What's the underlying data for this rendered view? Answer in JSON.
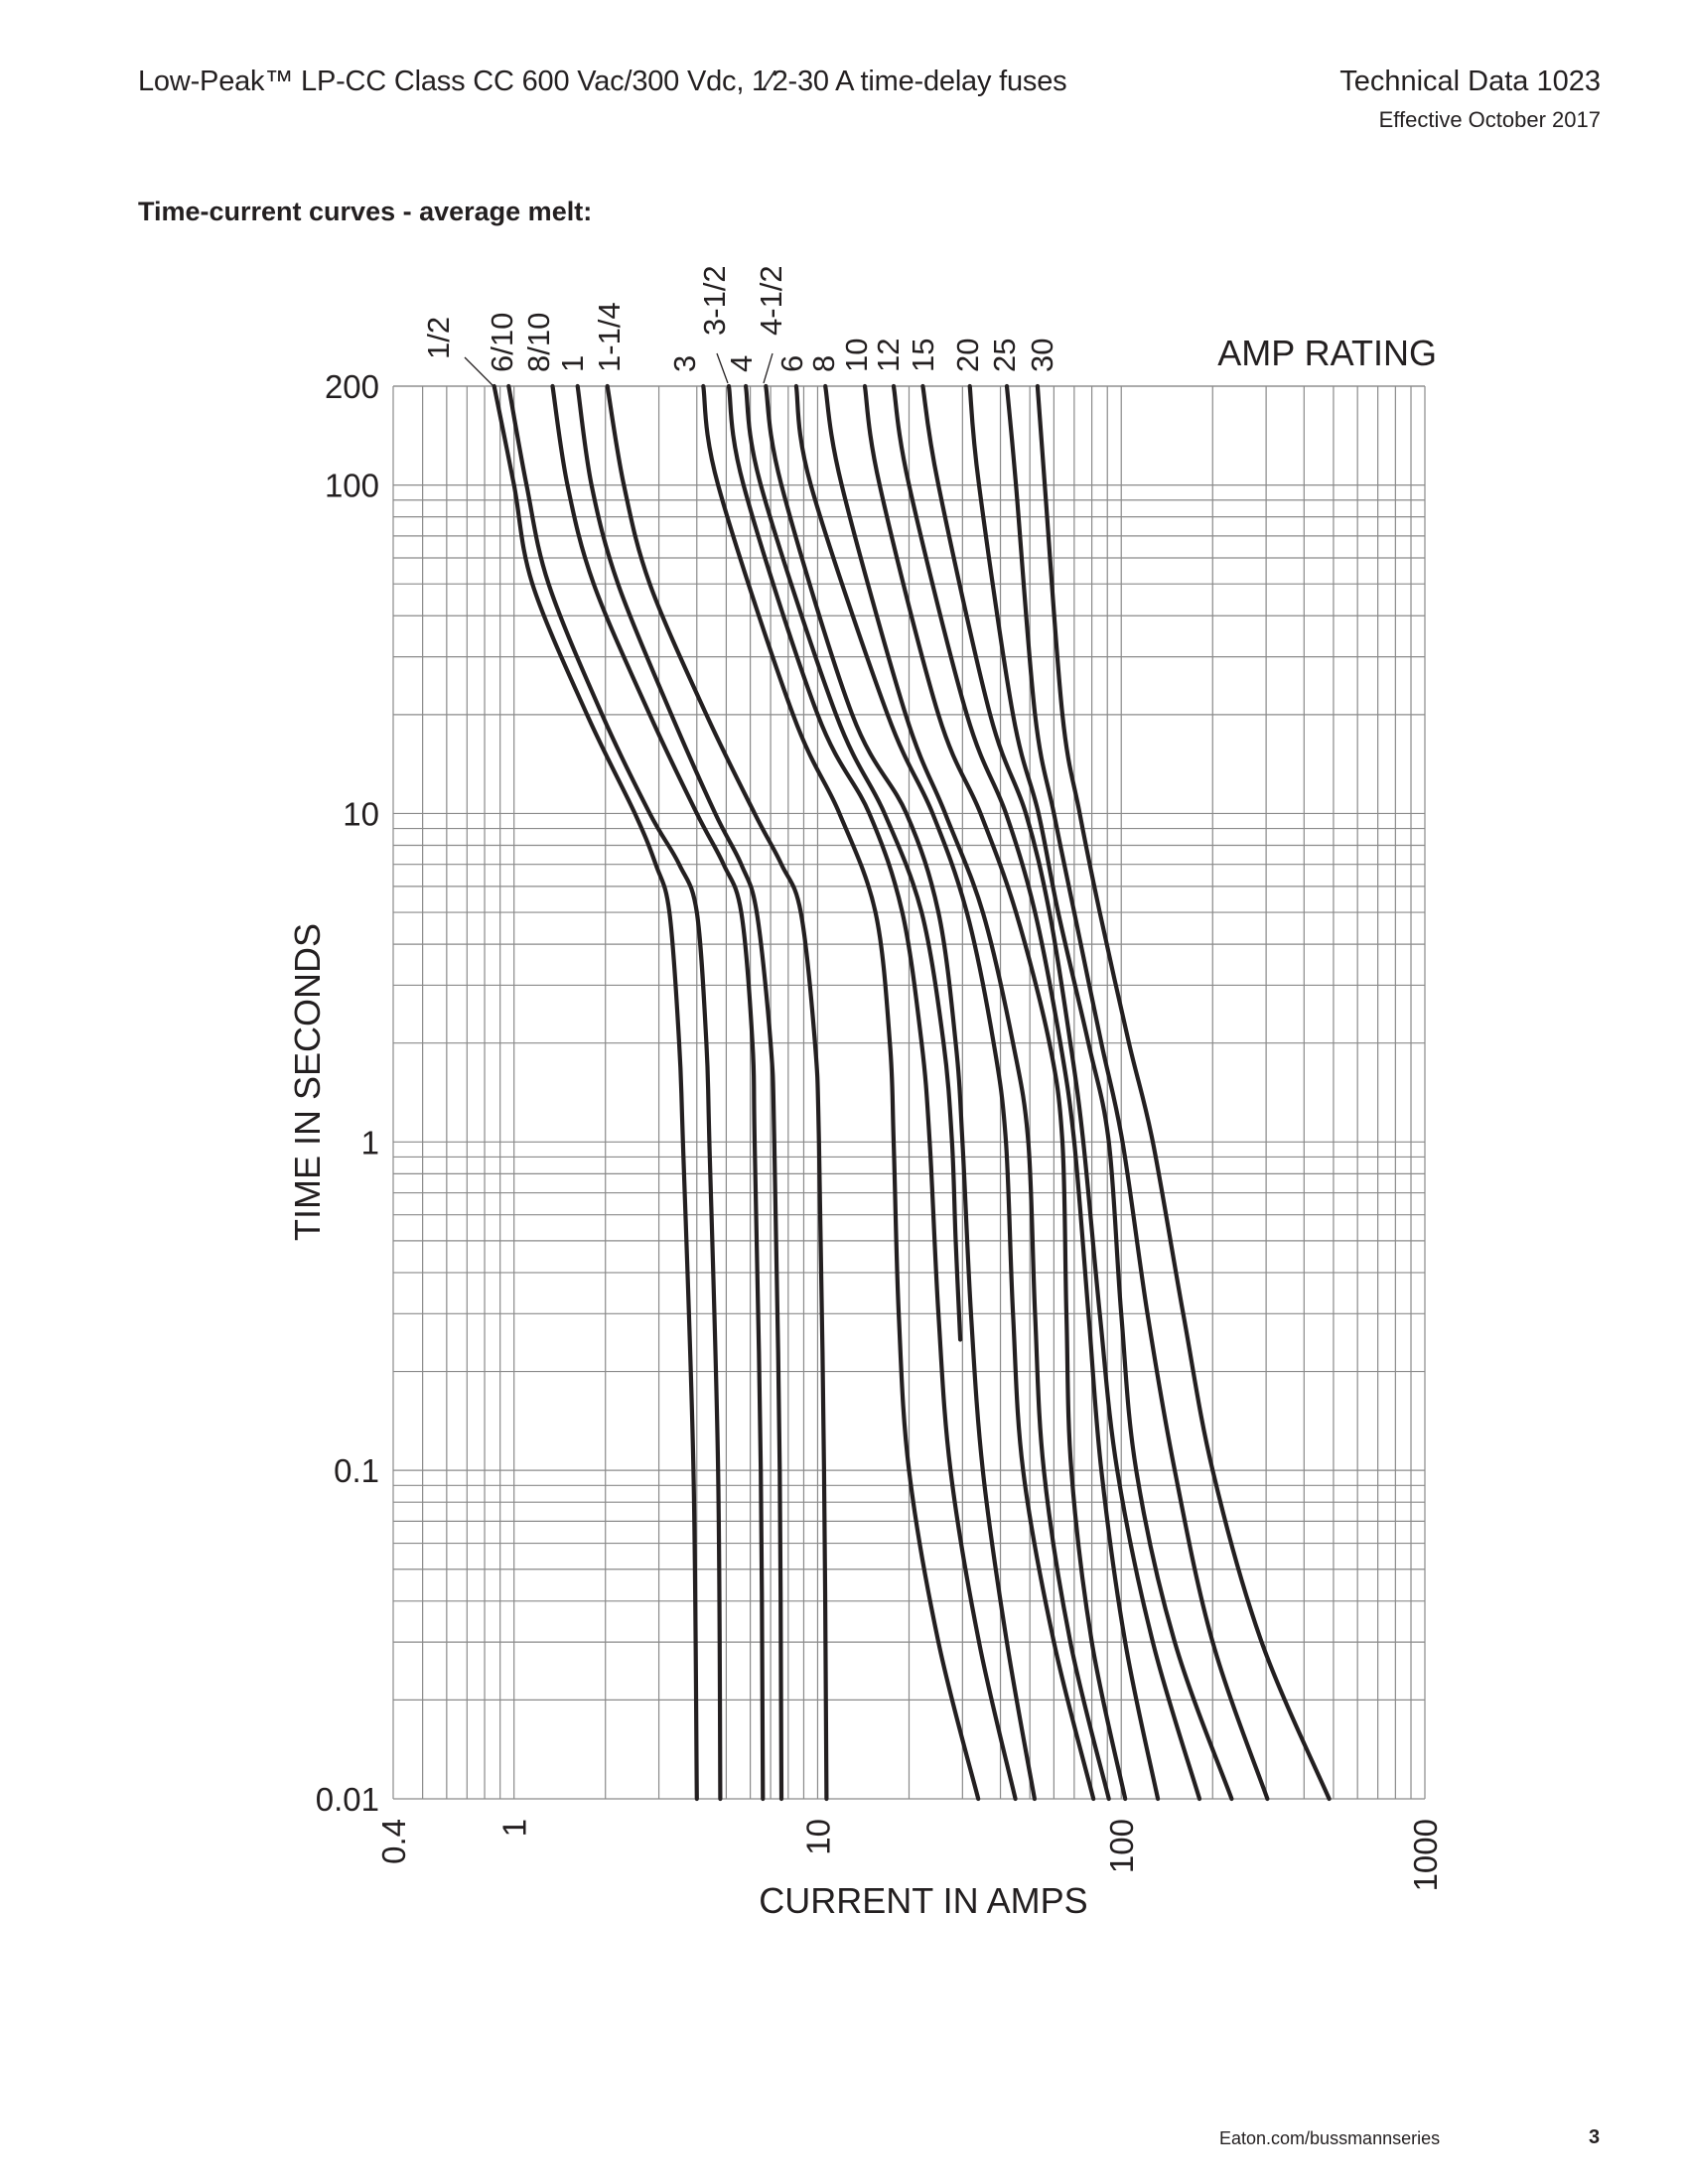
{
  "header": {
    "title": "Low-Peak™ LP-CC Class CC 600 Vac/300 Vdc, 1⁄2-30 A time-delay fuses",
    "doc": "Technical Data 1023",
    "date": "Effective October 2017"
  },
  "section_title": "Time-current curves - average melt:",
  "footer": {
    "url": "Eaton.com/bussmannseries",
    "page": "3"
  },
  "chart_data": {
    "type": "line",
    "title": "",
    "xlabel": "CURRENT IN AMPS",
    "ylabel": "TIME IN SECONDS",
    "legend_title": "AMP RATING",
    "xscale": "log",
    "yscale": "log",
    "xlim": [
      0.4,
      1000
    ],
    "ylim": [
      0.01,
      200
    ],
    "xticks": [
      "0.4",
      "1",
      "10",
      "100",
      "1000"
    ],
    "yticks": [
      "200",
      "100",
      "10",
      "1",
      "0.1",
      "0.01"
    ],
    "grid": true,
    "line_color": "#231f20",
    "series": [
      {
        "name": "1/2",
        "points": [
          [
            0.86,
            200
          ],
          [
            1.0,
            100
          ],
          [
            1.15,
            50
          ],
          [
            1.74,
            20
          ],
          [
            2.5,
            10
          ],
          [
            2.93,
            7
          ],
          [
            3.25,
            5
          ],
          [
            3.5,
            2
          ],
          [
            3.6,
            1
          ],
          [
            3.9,
            0.1
          ],
          [
            4.0,
            0.01
          ]
        ]
      },
      {
        "name": "6/10",
        "points": [
          [
            0.96,
            200
          ],
          [
            1.1,
            100
          ],
          [
            1.3,
            50
          ],
          [
            1.95,
            20
          ],
          [
            2.8,
            10
          ],
          [
            3.5,
            7
          ],
          [
            4.0,
            5
          ],
          [
            4.3,
            2
          ],
          [
            4.4,
            1
          ],
          [
            4.7,
            0.1
          ],
          [
            4.78,
            0.01
          ]
        ]
      },
      {
        "name": "8/10",
        "points": [
          [
            1.34,
            200
          ],
          [
            1.5,
            100
          ],
          [
            1.83,
            50
          ],
          [
            2.8,
            20
          ],
          [
            4.0,
            10
          ],
          [
            4.9,
            7
          ],
          [
            5.6,
            5
          ],
          [
            6.1,
            2
          ],
          [
            6.2,
            1
          ],
          [
            6.5,
            0.1
          ],
          [
            6.6,
            0.01
          ]
        ]
      },
      {
        "name": "1",
        "points": [
          [
            1.62,
            200
          ],
          [
            1.8,
            100
          ],
          [
            2.2,
            50
          ],
          [
            3.3,
            20
          ],
          [
            4.6,
            10
          ],
          [
            5.6,
            7
          ],
          [
            6.3,
            5
          ],
          [
            7.0,
            2
          ],
          [
            7.2,
            1
          ],
          [
            7.5,
            0.1
          ],
          [
            7.6,
            0.01
          ]
        ]
      },
      {
        "name": "1-1/4",
        "points": [
          [
            2.03,
            200
          ],
          [
            2.3,
            100
          ],
          [
            2.8,
            50
          ],
          [
            4.3,
            20
          ],
          [
            6.2,
            10
          ],
          [
            7.6,
            7
          ],
          [
            8.8,
            5
          ],
          [
            9.8,
            2
          ],
          [
            10.1,
            1
          ],
          [
            10.5,
            0.1
          ],
          [
            10.7,
            0.01
          ]
        ]
      },
      {
        "name": "3",
        "points": [
          [
            4.2,
            200
          ],
          [
            4.7,
            100
          ],
          [
            8.3,
            20
          ],
          [
            11.8,
            10
          ],
          [
            15.5,
            5
          ],
          [
            17.3,
            2
          ],
          [
            17.8,
            1
          ],
          [
            18.5,
            0.3
          ],
          [
            20,
            0.1
          ],
          [
            25,
            0.03
          ],
          [
            33.8,
            0.01
          ]
        ]
      },
      {
        "name": "3-1/2",
        "points": [
          [
            5.1,
            200
          ],
          [
            5.7,
            100
          ],
          [
            10,
            20
          ],
          [
            14.8,
            10
          ],
          [
            19,
            5
          ],
          [
            22,
            2
          ],
          [
            23.4,
            1
          ],
          [
            25,
            0.3
          ],
          [
            27.4,
            0.1
          ],
          [
            34,
            0.03
          ],
          [
            44.8,
            0.01
          ]
        ]
      },
      {
        "name": "4",
        "points": [
          [
            5.8,
            200
          ],
          [
            6.5,
            100
          ],
          [
            11.5,
            20
          ],
          [
            16.6,
            10
          ],
          [
            22,
            5
          ],
          [
            26,
            2
          ],
          [
            27.7,
            1
          ],
          [
            28.5,
            0.5
          ],
          [
            29.5,
            0.25
          ]
        ]
      },
      {
        "name": "4-1/2",
        "points": [
          [
            6.75,
            200
          ],
          [
            7.6,
            100
          ],
          [
            13,
            20
          ],
          [
            19.6,
            10
          ],
          [
            25,
            5
          ],
          [
            28.5,
            2
          ],
          [
            30,
            1
          ],
          [
            32,
            0.3
          ],
          [
            35,
            0.1
          ],
          [
            42,
            0.03
          ],
          [
            51.8,
            0.01
          ]
        ]
      },
      {
        "name": "6",
        "points": [
          [
            8.5,
            200
          ],
          [
            9.5,
            100
          ],
          [
            17,
            20
          ],
          [
            23.9,
            10
          ],
          [
            31,
            5
          ],
          [
            38,
            2
          ],
          [
            41.7,
            1
          ],
          [
            44,
            0.3
          ],
          [
            47.5,
            0.1
          ],
          [
            60,
            0.03
          ],
          [
            81,
            0.01
          ]
        ]
      },
      {
        "name": "8",
        "points": [
          [
            10.6,
            200
          ],
          [
            12,
            100
          ],
          [
            19.5,
            20
          ],
          [
            26.3,
            10
          ],
          [
            35,
            5
          ],
          [
            44,
            2
          ],
          [
            49.4,
            1
          ],
          [
            52,
            0.3
          ],
          [
            55.6,
            0.1
          ],
          [
            68,
            0.03
          ],
          [
            91,
            0.01
          ]
        ]
      },
      {
        "name": "10",
        "points": [
          [
            14.3,
            200
          ],
          [
            16,
            100
          ],
          [
            25,
            20
          ],
          [
            34.4,
            10
          ],
          [
            45,
            5
          ],
          [
            58,
            2
          ],
          [
            64,
            1
          ],
          [
            66,
            0.3
          ],
          [
            68.5,
            0.1
          ],
          [
            80,
            0.03
          ],
          [
            103,
            0.01
          ]
        ]
      },
      {
        "name": "12",
        "points": [
          [
            17.8,
            200
          ],
          [
            20,
            100
          ],
          [
            31,
            20
          ],
          [
            41.7,
            10
          ],
          [
            52,
            5
          ],
          [
            63,
            2
          ],
          [
            70,
            1
          ],
          [
            78,
            0.3
          ],
          [
            86,
            0.1
          ],
          [
            103,
            0.03
          ],
          [
            132,
            0.01
          ]
        ]
      },
      {
        "name": "15",
        "points": [
          [
            22.2,
            200
          ],
          [
            25,
            100
          ],
          [
            37,
            20
          ],
          [
            48.5,
            10
          ],
          [
            58,
            5
          ],
          [
            68,
            2
          ],
          [
            75,
            1
          ],
          [
            85,
            0.3
          ],
          [
            97,
            0.1
          ],
          [
            127,
            0.03
          ],
          [
            181,
            0.01
          ]
        ]
      },
      {
        "name": "20",
        "points": [
          [
            31.7,
            200
          ],
          [
            34,
            100
          ],
          [
            44,
            20
          ],
          [
            53.4,
            10
          ],
          [
            62,
            5
          ],
          [
            78,
            2
          ],
          [
            91,
            1
          ],
          [
            100,
            0.3
          ],
          [
            112,
            0.1
          ],
          [
            150,
            0.03
          ],
          [
            231,
            0.01
          ]
        ]
      },
      {
        "name": "25",
        "points": [
          [
            42,
            200
          ],
          [
            45,
            100
          ],
          [
            52,
            20
          ],
          [
            60,
            10
          ],
          [
            70,
            5
          ],
          [
            86,
            2
          ],
          [
            101,
            1
          ],
          [
            122,
            0.3
          ],
          [
            150,
            0.1
          ],
          [
            200,
            0.03
          ],
          [
            303,
            0.01
          ]
        ]
      },
      {
        "name": "30",
        "points": [
          [
            53,
            200
          ],
          [
            56,
            100
          ],
          [
            64,
            20
          ],
          [
            73,
            10
          ],
          [
            85,
            5
          ],
          [
            106,
            2
          ],
          [
            127,
            1
          ],
          [
            160,
            0.3
          ],
          [
            200,
            0.1
          ],
          [
            290,
            0.03
          ],
          [
            484,
            0.01
          ]
        ]
      }
    ]
  }
}
